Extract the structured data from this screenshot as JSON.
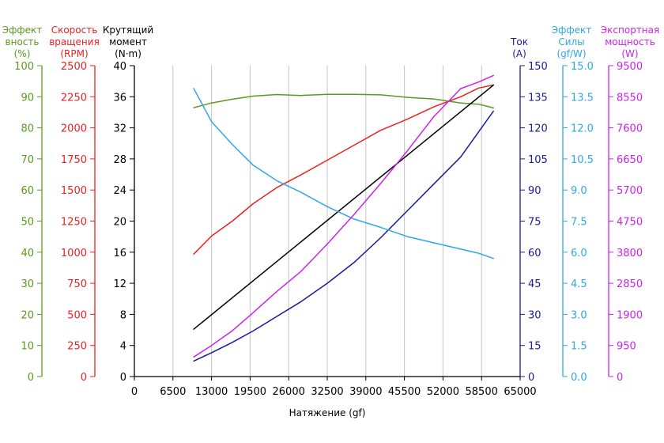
{
  "chart_data": {
    "type": "line",
    "xlabel": "Натяжение (gf)",
    "xlim": [
      0,
      65000
    ],
    "x_ticks": [
      "0",
      "6500",
      "13000",
      "19500",
      "26000",
      "32500",
      "39000",
      "45500",
      "52000",
      "58500",
      "65000"
    ],
    "grid": "vertical",
    "axes": {
      "efficiency": {
        "label_lines": [
          "Эффект",
          "вность",
          "(%)"
        ],
        "color": "#5a9a1e",
        "range": [
          0,
          100
        ],
        "ticks": [
          "0",
          "10",
          "20",
          "30",
          "40",
          "50",
          "60",
          "70",
          "80",
          "90",
          "100"
        ]
      },
      "rpm": {
        "label_lines": [
          "Скорость",
          "вращения",
          "(RPM)"
        ],
        "color": "#ee2020",
        "range": [
          0,
          2500
        ],
        "ticks": [
          "0",
          "250",
          "500",
          "750",
          "1000",
          "1250",
          "1500",
          "1750",
          "2000",
          "2250",
          "2500"
        ]
      },
      "torque": {
        "label_lines": [
          "Крутящий",
          "момент",
          "(N·m)"
        ],
        "color": "#000000",
        "range": [
          0,
          40
        ],
        "ticks": [
          "0",
          "4",
          "8",
          "12",
          "16",
          "20",
          "24",
          "28",
          "32",
          "36",
          "40"
        ]
      },
      "current": {
        "label_lines": [
          "Ток",
          "(A)"
        ],
        "color": "#1a1a9a",
        "range": [
          0,
          150
        ],
        "ticks": [
          "0",
          "15",
          "30",
          "45",
          "60",
          "75",
          "90",
          "105",
          "120",
          "135",
          "150"
        ]
      },
      "force_efficiency": {
        "label_lines": [
          "Эффект",
          "Силы",
          "(gf/W)"
        ],
        "color": "#2ea8e6",
        "range": [
          0,
          15
        ],
        "ticks": [
          "0.0",
          "1.5",
          "3.0",
          "4.5",
          "6.0",
          "7.5",
          "9.0",
          "10.5",
          "12.0",
          "13.5",
          "15.0"
        ]
      },
      "export_power": {
        "label_lines": [
          "Экспортная",
          "мощность",
          "(W)"
        ],
        "color": "#cc22ee",
        "range": [
          0,
          9500
        ],
        "ticks": [
          "0",
          "950",
          "1900",
          "2850",
          "3800",
          "4750",
          "5700",
          "6650",
          "7600",
          "8550",
          "9500"
        ]
      }
    },
    "series": [
      {
        "axis": "efficiency",
        "color": "#5a9a1e",
        "x": [
          10000,
          13000,
          16500,
          20000,
          24000,
          28000,
          32500,
          37000,
          41500,
          46000,
          50500,
          55000,
          58000,
          60500
        ],
        "y": [
          86.5,
          88,
          89.2,
          90.2,
          90.7,
          90.4,
          90.8,
          90.8,
          90.6,
          89.8,
          89.3,
          88,
          87.6,
          86.4
        ]
      },
      {
        "axis": "rpm",
        "color": "#ee2020",
        "x": [
          10000,
          13000,
          16500,
          20000,
          24000,
          28000,
          32500,
          37000,
          41500,
          46000,
          50500,
          55000,
          58000,
          60500
        ],
        "y": [
          985,
          1130,
          1250,
          1390,
          1520,
          1620,
          1740,
          1860,
          1980,
          2070,
          2170,
          2250,
          2320,
          2345
        ]
      },
      {
        "axis": "torque",
        "color": "#000000",
        "x": [
          10000,
          60500
        ],
        "y": [
          6.1,
          37.5
        ]
      },
      {
        "axis": "current",
        "color": "#1a1a9a",
        "x": [
          10000,
          13000,
          16500,
          20000,
          24000,
          28000,
          32500,
          37000,
          41500,
          46000,
          50500,
          55000,
          58000,
          60500
        ],
        "y": [
          7.5,
          11.5,
          16.5,
          22,
          29,
          36,
          45,
          55,
          67,
          80,
          93,
          106,
          118,
          128
        ]
      },
      {
        "axis": "force_efficiency",
        "color": "#2ea8e6",
        "x": [
          10000,
          13000,
          16500,
          20000,
          24000,
          28000,
          32500,
          37000,
          41500,
          46000,
          50500,
          55000,
          58000,
          60500
        ],
        "y": [
          13.9,
          12.3,
          11.2,
          10.2,
          9.45,
          8.9,
          8.2,
          7.6,
          7.2,
          6.75,
          6.45,
          6.15,
          5.95,
          5.7
        ]
      },
      {
        "axis": "export_power",
        "color": "#cc22ee",
        "x": [
          10000,
          13000,
          16500,
          20000,
          24000,
          28000,
          32500,
          37000,
          41500,
          46000,
          50500,
          55000,
          58000,
          60500
        ],
        "y": [
          600,
          950,
          1400,
          1950,
          2600,
          3200,
          4050,
          4950,
          5900,
          6900,
          7950,
          8800,
          9000,
          9200
        ]
      }
    ]
  }
}
